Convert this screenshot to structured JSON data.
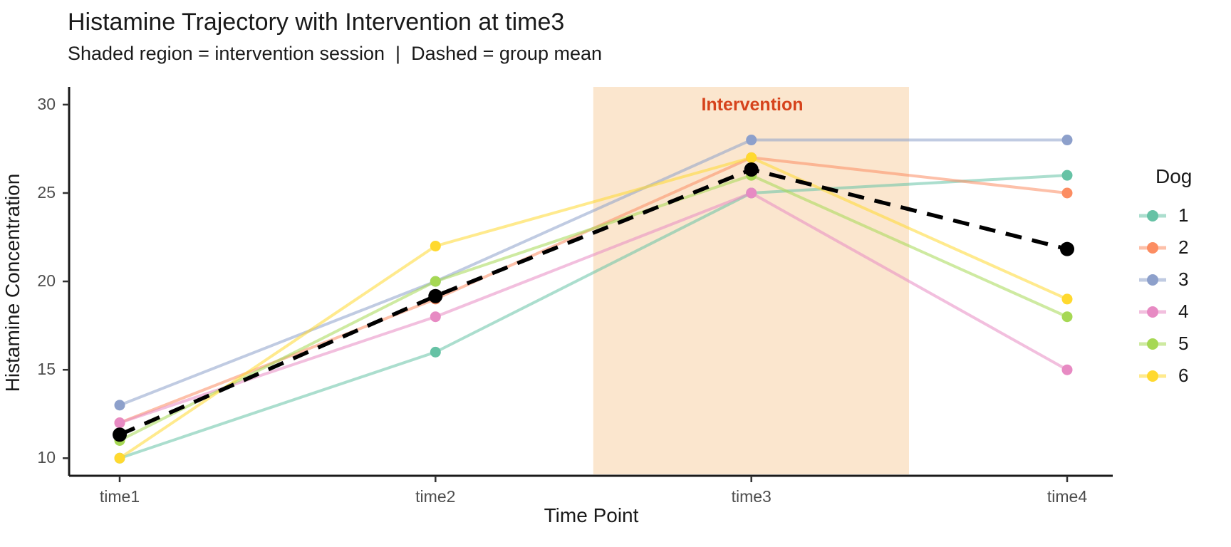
{
  "chart_data": {
    "type": "line",
    "title": "Histamine Trajectory with Intervention at time3",
    "subtitle": "Shaded region = intervention session  |  Dashed = group mean",
    "xlabel": "Time Point",
    "ylabel": "Histamine Concentration",
    "categories": [
      "time1",
      "time2",
      "time3",
      "time4"
    ],
    "y_ticks": [
      10,
      15,
      20,
      25,
      30
    ],
    "ylim": [
      9,
      31
    ],
    "grid": "off",
    "series": [
      {
        "name": "1",
        "color": "#66C2A5",
        "values": [
          10,
          16,
          25,
          26
        ]
      },
      {
        "name": "2",
        "color": "#FC8D62",
        "values": [
          12,
          19,
          27,
          25
        ]
      },
      {
        "name": "3",
        "color": "#8DA0CB",
        "values": [
          13,
          20,
          28,
          28
        ]
      },
      {
        "name": "4",
        "color": "#E78AC3",
        "values": [
          12,
          18,
          25,
          15
        ]
      },
      {
        "name": "5",
        "color": "#A6D854",
        "values": [
          11,
          20,
          26,
          18
        ]
      },
      {
        "name": "6",
        "color": "#FFD92F",
        "values": [
          10,
          22,
          27,
          19
        ]
      }
    ],
    "mean_series": {
      "name": "group mean",
      "color": "#000000",
      "style": "dashed",
      "values": [
        11.33,
        19.17,
        26.33,
        21.83
      ]
    },
    "annotation": {
      "label": "Intervention",
      "label_color": "#d6431c",
      "region_fill": "#FBE6CE",
      "region_categories": [
        "time3"
      ],
      "region_span": [
        2.5,
        3.5
      ]
    },
    "legend": {
      "title": "Dog",
      "position": "right",
      "entries": [
        "1",
        "2",
        "3",
        "4",
        "5",
        "6"
      ]
    }
  }
}
